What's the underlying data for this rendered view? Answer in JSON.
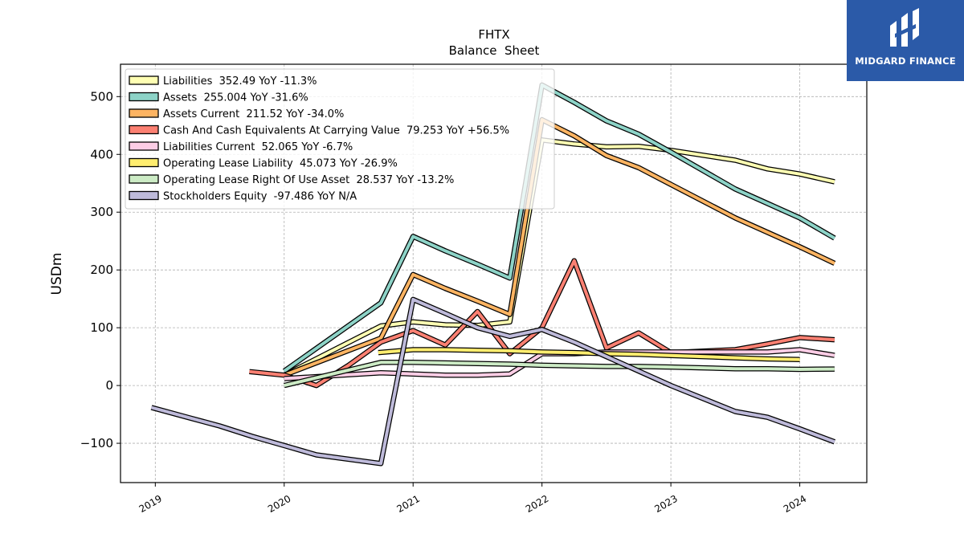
{
  "brand": {
    "name": "MIDGARD FINANCE",
    "bg_color": "#2b5aa8"
  },
  "chart_data": {
    "type": "line",
    "title": "FHTX",
    "subtitle": "Balance  Sheet",
    "ylabel": "USDm",
    "xlabel": "",
    "x_ticks": [
      "2019",
      "2020",
      "2021",
      "2022",
      "2023",
      "2024"
    ],
    "y_ticks": [
      -100,
      0,
      100,
      200,
      300,
      400,
      500
    ],
    "xlim": [
      2018.73,
      2024.52
    ],
    "ylim": [
      -168,
      556
    ],
    "grid": true,
    "legend_placement": "top-left",
    "series": [
      {
        "name": "Liabilities",
        "label": "Liabilities  352.49 YoY -11.3%",
        "color": "#ffffb3",
        "points": [
          [
            2020.0,
            18
          ],
          [
            2020.75,
            103
          ],
          [
            2021.0,
            110
          ],
          [
            2021.25,
            105
          ],
          [
            2021.5,
            104
          ],
          [
            2021.75,
            110
          ],
          [
            2022.0,
            425
          ],
          [
            2022.25,
            418
          ],
          [
            2022.5,
            413
          ],
          [
            2022.75,
            414
          ],
          [
            2023.0,
            407
          ],
          [
            2023.5,
            390
          ],
          [
            2023.75,
            375
          ],
          [
            2024.0,
            366
          ],
          [
            2024.27,
            352.49
          ]
        ]
      },
      {
        "name": "Assets",
        "label": "Assets  255.004 YoY -31.6%",
        "color": "#8dd3c7",
        "points": [
          [
            2020.0,
            25
          ],
          [
            2020.75,
            143
          ],
          [
            2021.0,
            258
          ],
          [
            2021.25,
            233
          ],
          [
            2021.5,
            210
          ],
          [
            2021.75,
            186
          ],
          [
            2022.0,
            520
          ],
          [
            2022.25,
            490
          ],
          [
            2022.5,
            458
          ],
          [
            2022.75,
            435
          ],
          [
            2023.0,
            404
          ],
          [
            2023.5,
            340
          ],
          [
            2023.75,
            315
          ],
          [
            2024.0,
            290
          ],
          [
            2024.27,
            255.004
          ]
        ]
      },
      {
        "name": "Assets Current",
        "label": "Assets Current  211.52 YoY -34.0%",
        "color": "#fdb462",
        "points": [
          [
            2020.0,
            18
          ],
          [
            2020.75,
            82
          ],
          [
            2021.0,
            192
          ],
          [
            2021.25,
            168
          ],
          [
            2021.5,
            146
          ],
          [
            2021.75,
            123
          ],
          [
            2022.0,
            460
          ],
          [
            2022.25,
            432
          ],
          [
            2022.5,
            398
          ],
          [
            2022.75,
            377
          ],
          [
            2023.0,
            348
          ],
          [
            2023.5,
            290
          ],
          [
            2023.75,
            265
          ],
          [
            2024.0,
            240
          ],
          [
            2024.27,
            211.52
          ]
        ]
      },
      {
        "name": "Cash And Cash Equivalents At Carrying Value",
        "label": "Cash And Cash Equivalents At Carrying Value  79.253 YoY +56.5%",
        "color": "#fb8072",
        "points": [
          [
            2019.73,
            24
          ],
          [
            2020.0,
            18
          ],
          [
            2020.25,
            0
          ],
          [
            2020.5,
            35
          ],
          [
            2020.75,
            75
          ],
          [
            2021.0,
            95
          ],
          [
            2021.25,
            70
          ],
          [
            2021.5,
            128
          ],
          [
            2021.75,
            55
          ],
          [
            2022.0,
            100
          ],
          [
            2022.25,
            216
          ],
          [
            2022.5,
            65
          ],
          [
            2022.75,
            91
          ],
          [
            2023.0,
            57
          ],
          [
            2023.5,
            62
          ],
          [
            2023.75,
            72
          ],
          [
            2024.0,
            83
          ],
          [
            2024.27,
            79.253
          ]
        ]
      },
      {
        "name": "Liabilities Current",
        "label": "Liabilities Current  52.065 YoY -6.7%",
        "color": "#fccde5",
        "points": [
          [
            2020.0,
            12
          ],
          [
            2020.75,
            22
          ],
          [
            2021.0,
            20
          ],
          [
            2021.25,
            18
          ],
          [
            2021.5,
            18
          ],
          [
            2021.75,
            20
          ],
          [
            2022.0,
            55
          ],
          [
            2022.25,
            55
          ],
          [
            2022.5,
            58
          ],
          [
            2022.75,
            58
          ],
          [
            2023.0,
            58
          ],
          [
            2023.5,
            58
          ],
          [
            2023.75,
            58
          ],
          [
            2024.0,
            62
          ],
          [
            2024.27,
            52.065
          ]
        ]
      },
      {
        "name": "Operating Lease Liability",
        "label": "Operating Lease Liability  45.073 YoY -26.9%",
        "color": "#ffed6f",
        "points": [
          [
            2020.73,
            57
          ],
          [
            2021.0,
            62
          ],
          [
            2021.25,
            62
          ],
          [
            2021.5,
            61
          ],
          [
            2021.75,
            60
          ],
          [
            2022.0,
            58
          ],
          [
            2022.25,
            57
          ],
          [
            2022.5,
            55
          ],
          [
            2022.75,
            54
          ],
          [
            2023.0,
            52
          ],
          [
            2023.5,
            48
          ],
          [
            2023.75,
            46
          ],
          [
            2024.0,
            45.073
          ]
        ]
      },
      {
        "name": "Operating Lease Right Of Use Asset",
        "label": "Operating Lease Right Of Use Asset  28.537 YoY -13.2%",
        "color": "#ccebc5",
        "points": [
          [
            2020.0,
            0
          ],
          [
            2020.75,
            40
          ],
          [
            2021.0,
            40
          ],
          [
            2021.25,
            39
          ],
          [
            2021.5,
            38
          ],
          [
            2021.75,
            37
          ],
          [
            2022.0,
            35
          ],
          [
            2022.25,
            34
          ],
          [
            2022.5,
            33
          ],
          [
            2022.75,
            33
          ],
          [
            2023.0,
            32
          ],
          [
            2023.5,
            29
          ],
          [
            2023.75,
            29
          ],
          [
            2024.0,
            28
          ],
          [
            2024.27,
            28.537
          ]
        ]
      },
      {
        "name": "Stockholders Equity",
        "label": "Stockholders Equity  -97.486 YoY N/A",
        "color": "#bebada",
        "points": [
          [
            2018.97,
            -38
          ],
          [
            2019.25,
            -55
          ],
          [
            2019.5,
            -70
          ],
          [
            2019.75,
            -88
          ],
          [
            2020.0,
            -104
          ],
          [
            2020.25,
            -120
          ],
          [
            2020.75,
            -135
          ],
          [
            2021.0,
            149
          ],
          [
            2021.25,
            125
          ],
          [
            2021.5,
            100
          ],
          [
            2021.75,
            85
          ],
          [
            2022.0,
            97
          ],
          [
            2022.25,
            75
          ],
          [
            2022.5,
            50
          ],
          [
            2022.75,
            25
          ],
          [
            2023.0,
            0
          ],
          [
            2023.5,
            -45
          ],
          [
            2023.75,
            -55
          ],
          [
            2024.0,
            -75
          ],
          [
            2024.27,
            -97.486
          ]
        ]
      }
    ]
  }
}
